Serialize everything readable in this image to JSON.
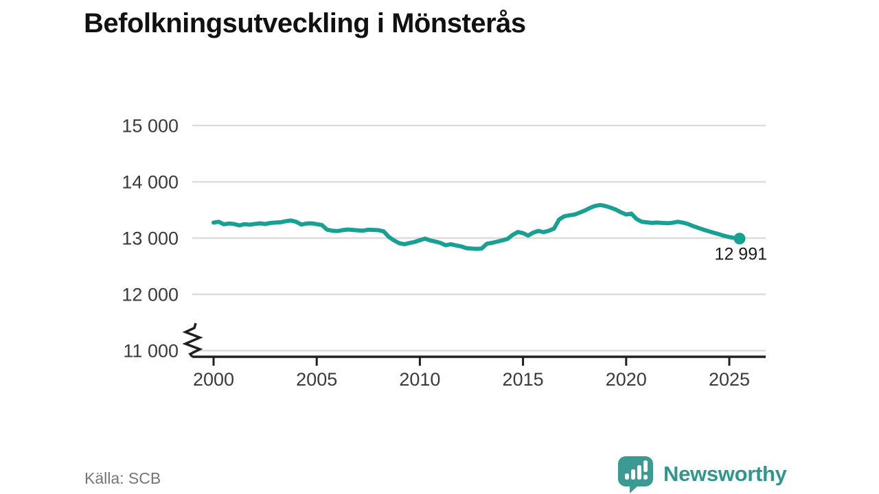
{
  "page": {
    "title": "Befolkningsutveckling i Mönsterås",
    "source": "Källa: SCB"
  },
  "branding": {
    "name": "Newsworthy",
    "color": "#2F978E",
    "icon_color": "#3B9B93",
    "icon": "speech-bubble-bar-chart"
  },
  "colors": {
    "line": "#18A093",
    "grid": "#DCDCDC",
    "axis": "#1F1F1F",
    "tick_label": "#3A3A3A",
    "title": "#111111",
    "source_text": "#757575",
    "end_label": "#1A1A1A"
  },
  "chart_data": {
    "type": "line",
    "title": "Befolkningsutveckling i Mönsterås",
    "series_name": "Befolkning",
    "xlabel": "",
    "ylabel": "",
    "grid": "horizontal",
    "legend": "none",
    "axis_break_at_bottom": true,
    "xticks": [
      2000,
      2005,
      2010,
      2015,
      2020,
      2025
    ],
    "yticks": [
      11000,
      12000,
      13000,
      14000,
      15000
    ],
    "ytick_labels": [
      "11 000",
      "12 000",
      "13 000",
      "14 000",
      "15 000"
    ],
    "ylim": [
      11000,
      15300
    ],
    "xlim": [
      1999.3,
      2026.8
    ],
    "end_point": {
      "x": 2025.5,
      "value": 12991,
      "label": "12 991"
    },
    "x": [
      2000,
      2000.25,
      2000.5,
      2000.75,
      2001,
      2001.25,
      2001.5,
      2001.75,
      2002,
      2002.25,
      2002.5,
      2002.75,
      2003,
      2003.25,
      2003.5,
      2003.75,
      2004,
      2004.25,
      2004.5,
      2004.75,
      2005,
      2005.25,
      2005.5,
      2005.75,
      2006,
      2006.25,
      2006.5,
      2006.75,
      2007,
      2007.25,
      2007.5,
      2007.75,
      2008,
      2008.25,
      2008.5,
      2008.75,
      2009,
      2009.25,
      2009.5,
      2009.75,
      2010,
      2010.25,
      2010.5,
      2010.75,
      2011,
      2011.25,
      2011.5,
      2011.75,
      2012,
      2012.25,
      2012.5,
      2012.75,
      2013,
      2013.25,
      2013.5,
      2013.75,
      2014,
      2014.25,
      2014.5,
      2014.75,
      2015,
      2015.25,
      2015.5,
      2015.75,
      2016,
      2016.25,
      2016.5,
      2016.75,
      2017,
      2017.25,
      2017.5,
      2017.75,
      2018,
      2018.25,
      2018.5,
      2018.75,
      2019,
      2019.25,
      2019.5,
      2019.75,
      2020,
      2020.25,
      2020.5,
      2020.75,
      2021,
      2021.25,
      2021.5,
      2021.75,
      2022,
      2022.25,
      2022.5,
      2022.75,
      2023,
      2023.25,
      2023.5,
      2023.75,
      2024,
      2024.25,
      2024.5,
      2024.75,
      2025,
      2025.25,
      2025.5
    ],
    "values": [
      13275,
      13290,
      13245,
      13260,
      13250,
      13225,
      13248,
      13238,
      13252,
      13262,
      13250,
      13268,
      13275,
      13282,
      13300,
      13312,
      13290,
      13240,
      13258,
      13262,
      13248,
      13232,
      13150,
      13132,
      13125,
      13142,
      13152,
      13145,
      13138,
      13132,
      13150,
      13145,
      13140,
      13118,
      13020,
      12958,
      12908,
      12892,
      12912,
      12932,
      12962,
      12992,
      12958,
      12938,
      12915,
      12872,
      12892,
      12870,
      12852,
      12822,
      12815,
      12808,
      12815,
      12900,
      12915,
      12938,
      12960,
      12985,
      13058,
      13108,
      13088,
      13045,
      13098,
      13128,
      13105,
      13130,
      13168,
      13330,
      13388,
      13405,
      13418,
      13452,
      13490,
      13538,
      13572,
      13588,
      13570,
      13540,
      13505,
      13458,
      13420,
      13435,
      13340,
      13292,
      13280,
      13270,
      13276,
      13270,
      13264,
      13272,
      13290,
      13275,
      13250,
      13212,
      13180,
      13150,
      13122,
      13095,
      13068,
      13040,
      13018,
      13002,
      12991
    ]
  }
}
